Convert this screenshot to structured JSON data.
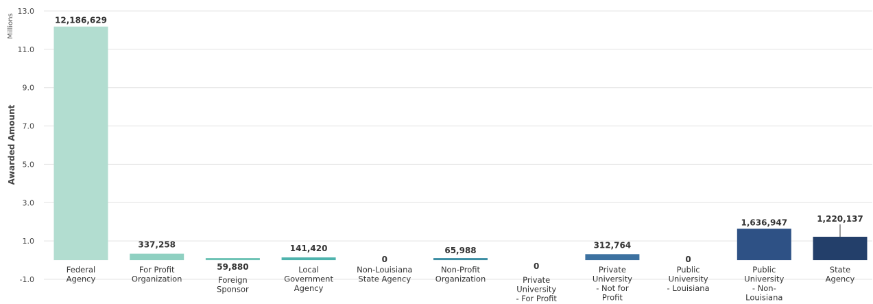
{
  "chart_data": {
    "type": "bar",
    "ylabel": "Awarded Amount",
    "unit_label": "Millions",
    "ylim": [
      -1.0,
      13.0
    ],
    "yticks": [
      "-1.0",
      "1.0",
      "3.0",
      "5.0",
      "7.0",
      "9.0",
      "11.0",
      "13.0"
    ],
    "grid": true,
    "legend": "none",
    "categories": [
      [
        "Federal",
        "Agency"
      ],
      [
        "For Profit",
        "Organization"
      ],
      [
        "Foreign",
        "Sponsor"
      ],
      [
        "Local",
        "Government",
        "Agency"
      ],
      [
        "Non-Louisiana",
        "State Agency"
      ],
      [
        "Non-Profit",
        "Organization"
      ],
      [
        "Private",
        "University",
        "- For Profit"
      ],
      [
        "Private",
        "University",
        "- Not for",
        "Profit"
      ],
      [
        "Public",
        "University",
        "- Louisiana"
      ],
      [
        "Public",
        "University",
        "- Non-",
        "Louisiana"
      ],
      [
        "State",
        "Agency"
      ]
    ],
    "values": [
      12186629,
      337258,
      59880,
      141420,
      0,
      65988,
      0,
      312764,
      0,
      1636947,
      1220137
    ],
    "data_labels": [
      "12,186,629",
      "337,258",
      "59,880",
      "141,420",
      "0",
      "65,988",
      "0",
      "312,764",
      "0",
      "1,636,947",
      "1,220,137"
    ],
    "colors": [
      "#b2ddd0",
      "#8fd0c1",
      "#6ec3b5",
      "#4eb3ad",
      "#3f9fa6",
      "#3d8ea3",
      "#3d7ea0",
      "#3c71a0",
      "#37619a",
      "#2e5185",
      "#233f6a"
    ]
  }
}
